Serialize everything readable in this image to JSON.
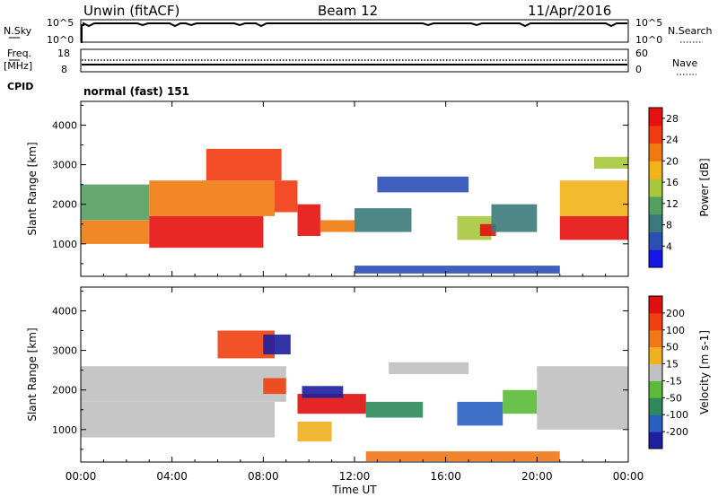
{
  "header": {
    "site": "Unwin (fitACF)",
    "beam": "Beam 12",
    "date": "11/Apr/2016"
  },
  "top_panels": {
    "nsky_label": "N.Sky",
    "nsky_ticks": [
      "10^5",
      "10^0"
    ],
    "nsearch_ticks": [
      "10^5",
      "10^0"
    ],
    "nsearch_label": "N.Search",
    "freq_label_1": "Freq.",
    "freq_label_2": "[MHz]",
    "freq_ticks": [
      "18",
      "8"
    ],
    "nave_ticks": [
      "60",
      "0"
    ],
    "nave_label": "Nave",
    "cpid_label": "CPID",
    "cpid_text": "normal (fast) 151"
  },
  "colors": {
    "power": [
      "#1515e6",
      "#2a4fb5",
      "#3a7a7a",
      "#55a060",
      "#a8c83c",
      "#f2b218",
      "#f07a10",
      "#f23a10",
      "#e61010"
    ],
    "velocity": [
      "#1e1ea0",
      "#2860c0",
      "#2e8a5a",
      "#5cba3a",
      "#c0c0c0",
      "#f0b020",
      "#f07818",
      "#f04010",
      "#e01010"
    ]
  },
  "chart_data": [
    {
      "type": "heatmap",
      "title": "",
      "xlabel": "",
      "ylabel": "Slant Range [km]",
      "x_ticks": [
        "00:00",
        "04:00",
        "08:00",
        "12:00",
        "16:00",
        "20:00",
        "00:00"
      ],
      "y_ticks": [
        "1000",
        "2000",
        "3000",
        "4000"
      ],
      "xlim_hours": [
        0,
        24
      ],
      "ylim_km": [
        180,
        4600
      ],
      "colorbar": {
        "label": "Power [dB]",
        "ticks": [
          "4",
          "8",
          "12",
          "16",
          "20",
          "24",
          "28"
        ],
        "range": [
          0,
          30
        ]
      },
      "patches": [
        {
          "t0": 0.0,
          "t1": 3.0,
          "r0": 1000,
          "r1": 1600,
          "level": 6
        },
        {
          "t0": 0.0,
          "t1": 3.0,
          "r0": 1600,
          "r1": 2500,
          "level": 3
        },
        {
          "t0": 3.0,
          "t1": 8.0,
          "r0": 900,
          "r1": 1700,
          "level": 8
        },
        {
          "t0": 3.0,
          "t1": 8.5,
          "r0": 1700,
          "r1": 2600,
          "level": 6
        },
        {
          "t0": 5.5,
          "t1": 8.8,
          "r0": 2600,
          "r1": 3400,
          "level": 7
        },
        {
          "t0": 8.5,
          "t1": 9.5,
          "r0": 1800,
          "r1": 2600,
          "level": 7
        },
        {
          "t0": 9.5,
          "t1": 10.5,
          "r0": 1200,
          "r1": 2000,
          "level": 8
        },
        {
          "t0": 10.5,
          "t1": 12.0,
          "r0": 1300,
          "r1": 1600,
          "level": 6
        },
        {
          "t0": 12.0,
          "t1": 14.5,
          "r0": 1300,
          "r1": 1900,
          "level": 2
        },
        {
          "t0": 13.0,
          "t1": 17.0,
          "r0": 2300,
          "r1": 2700,
          "level": 1
        },
        {
          "t0": 16.5,
          "t1": 18.0,
          "r0": 1100,
          "r1": 1700,
          "level": 4
        },
        {
          "t0": 17.5,
          "t1": 18.2,
          "r0": 1200,
          "r1": 1500,
          "level": 8
        },
        {
          "t0": 18.0,
          "t1": 20.0,
          "r0": 1300,
          "r1": 2000,
          "level": 2
        },
        {
          "t0": 21.0,
          "t1": 24.0,
          "r0": 1100,
          "r1": 1700,
          "level": 8
        },
        {
          "t0": 21.0,
          "t1": 24.0,
          "r0": 1700,
          "r1": 2600,
          "level": 5
        },
        {
          "t0": 22.5,
          "t1": 24.0,
          "r0": 2900,
          "r1": 3200,
          "level": 4
        },
        {
          "t0": 12.0,
          "t1": 21.0,
          "r0": 250,
          "r1": 450,
          "level": 1
        }
      ]
    },
    {
      "type": "heatmap",
      "title": "",
      "xlabel": "Time UT",
      "ylabel": "Slant Range [km]",
      "x_ticks": [
        "00:00",
        "04:00",
        "08:00",
        "12:00",
        "16:00",
        "20:00",
        "00:00"
      ],
      "y_ticks": [
        "1000",
        "2000",
        "3000",
        "4000"
      ],
      "xlim_hours": [
        0,
        24
      ],
      "ylim_km": [
        180,
        4600
      ],
      "colorbar": {
        "label": "Velocity [m s-1]",
        "ticks": [
          "200",
          "100",
          "50",
          "15",
          "-15",
          "-50",
          "-100",
          "-200"
        ],
        "range": [
          -250,
          250
        ]
      },
      "patches": [
        {
          "t0": 0.0,
          "t1": 8.5,
          "r0": 800,
          "r1": 1700,
          "level": 4
        },
        {
          "t0": 0.0,
          "t1": 9.0,
          "r0": 1700,
          "r1": 2600,
          "level": 4
        },
        {
          "t0": 6.0,
          "t1": 8.5,
          "r0": 2800,
          "r1": 3500,
          "level": 7
        },
        {
          "t0": 8.0,
          "t1": 9.2,
          "r0": 2900,
          "r1": 3400,
          "level": 0
        },
        {
          "t0": 8.0,
          "t1": 9.0,
          "r0": 1900,
          "r1": 2300,
          "level": 7
        },
        {
          "t0": 9.5,
          "t1": 12.5,
          "r0": 1400,
          "r1": 1900,
          "level": 8
        },
        {
          "t0": 9.7,
          "t1": 11.5,
          "r0": 1800,
          "r1": 2100,
          "level": 0
        },
        {
          "t0": 9.5,
          "t1": 11.0,
          "r0": 700,
          "r1": 1200,
          "level": 5
        },
        {
          "t0": 12.5,
          "t1": 15.0,
          "r0": 1300,
          "r1": 1700,
          "level": 2
        },
        {
          "t0": 13.5,
          "t1": 17.0,
          "r0": 2400,
          "r1": 2700,
          "level": 4
        },
        {
          "t0": 16.5,
          "t1": 18.5,
          "r0": 1100,
          "r1": 1700,
          "level": 1
        },
        {
          "t0": 18.5,
          "t1": 20.0,
          "r0": 1400,
          "r1": 2000,
          "level": 3
        },
        {
          "t0": 20.0,
          "t1": 24.0,
          "r0": 1000,
          "r1": 2600,
          "level": 4
        },
        {
          "t0": 12.5,
          "t1": 21.0,
          "r0": 200,
          "r1": 450,
          "level": 6
        }
      ]
    }
  ]
}
